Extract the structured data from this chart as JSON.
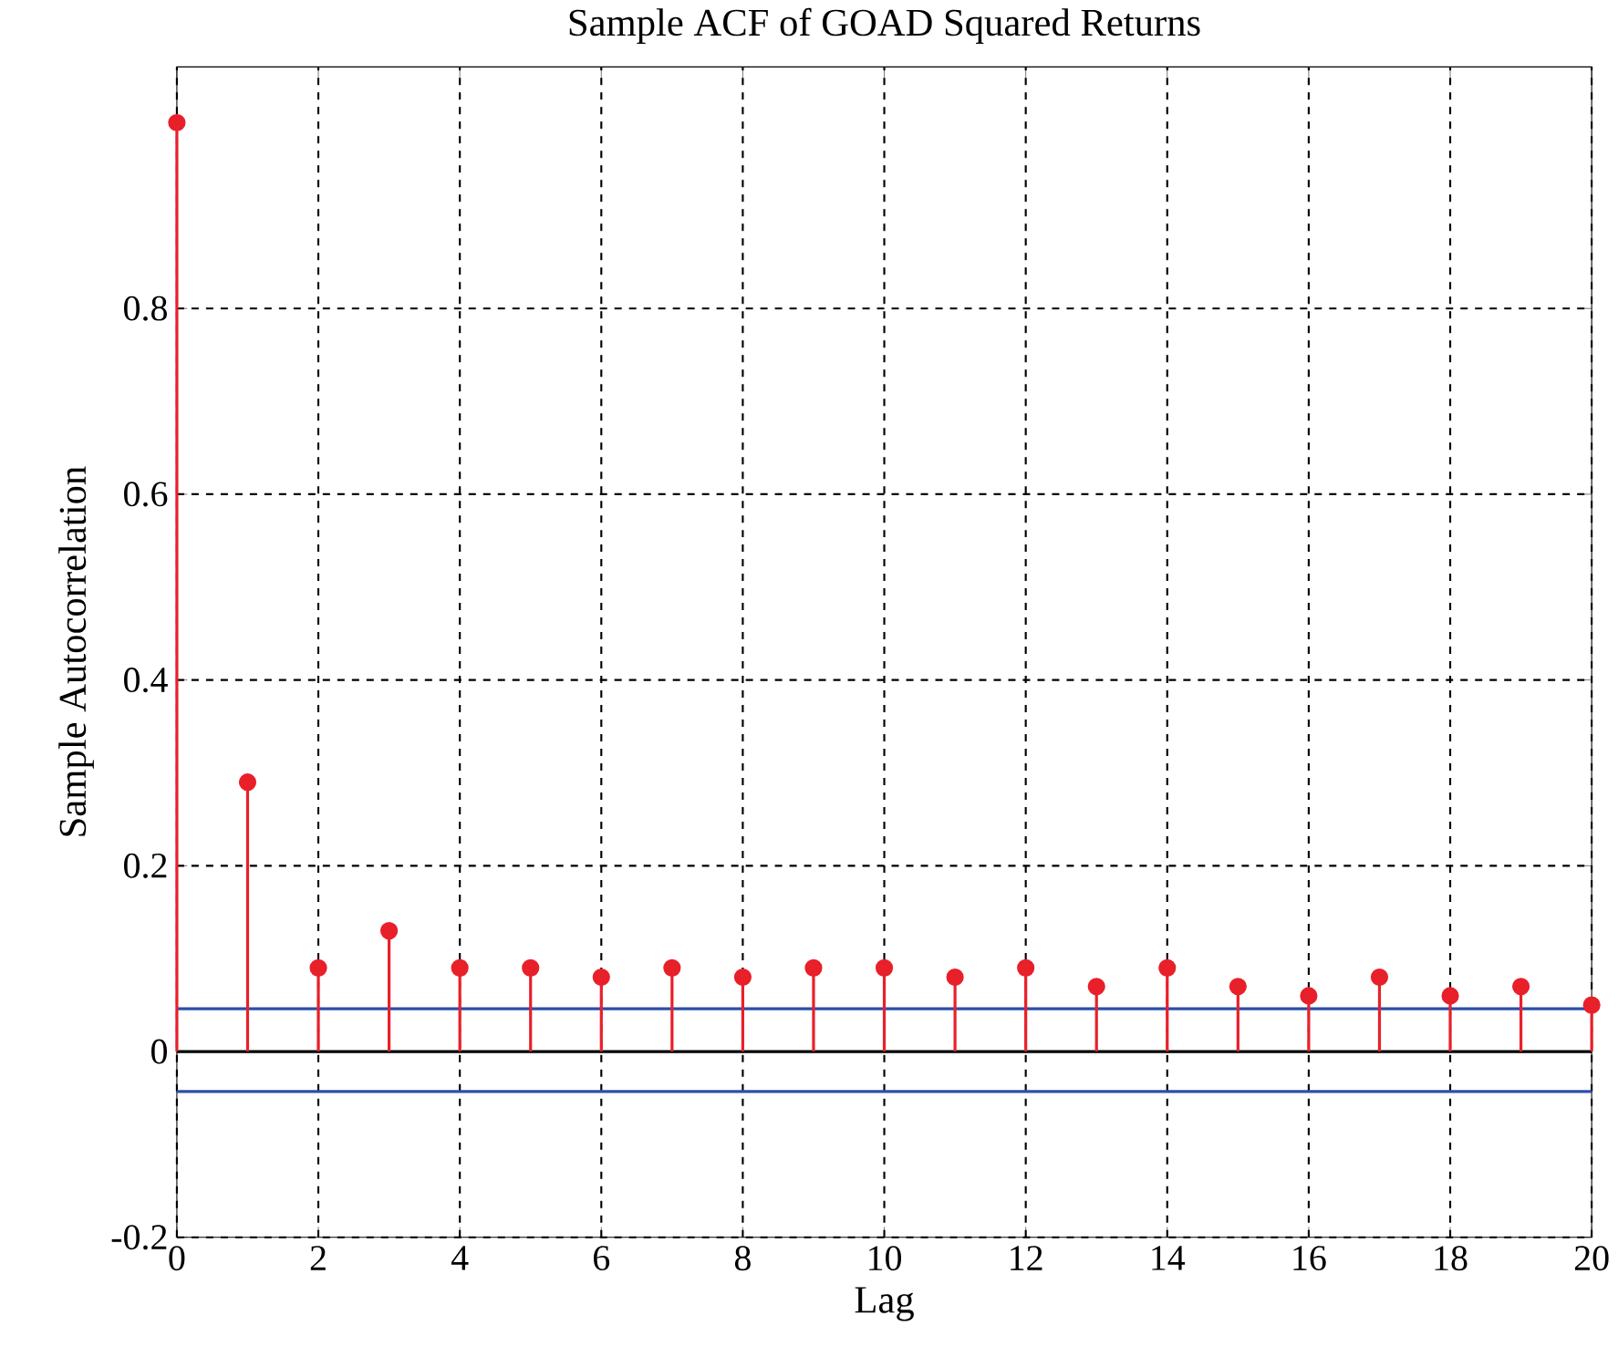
{
  "chart_data": {
    "type": "lollipop",
    "title": "Sample ACF of GOAD Squared Returns",
    "xlabel": "Lag",
    "ylabel": "Sample Autocorrelation",
    "x": [
      0,
      1,
      2,
      3,
      4,
      5,
      6,
      7,
      8,
      9,
      10,
      11,
      12,
      13,
      14,
      15,
      16,
      17,
      18,
      19,
      20
    ],
    "series": [
      {
        "color": "#e8202a",
        "values": [
          1.0,
          0.29,
          0.09,
          0.13,
          0.09,
          0.09,
          0.08,
          0.09,
          0.08,
          0.09,
          0.09,
          0.08,
          0.09,
          0.07,
          0.09,
          0.07,
          0.06,
          0.08,
          0.06,
          0.07,
          0.05
        ]
      }
    ],
    "xlim": [
      0,
      20
    ],
    "ylim": [
      -0.2,
      1.06
    ],
    "xticks": [
      0,
      2,
      4,
      6,
      8,
      10,
      12,
      14,
      16,
      18,
      20
    ],
    "yticks": [
      -0.2,
      0,
      0.2,
      0.4,
      0.6,
      0.8
    ],
    "ref_lines": [
      {
        "axis": "y",
        "value": 0.046,
        "color": "#2b4fa8"
      },
      {
        "axis": "y",
        "value": -0.043,
        "color": "#2b4fa8"
      },
      {
        "axis": "y",
        "value": 0,
        "color": "#000000"
      }
    ],
    "grid": true,
    "marker": "circle",
    "line_style": "dashed"
  }
}
